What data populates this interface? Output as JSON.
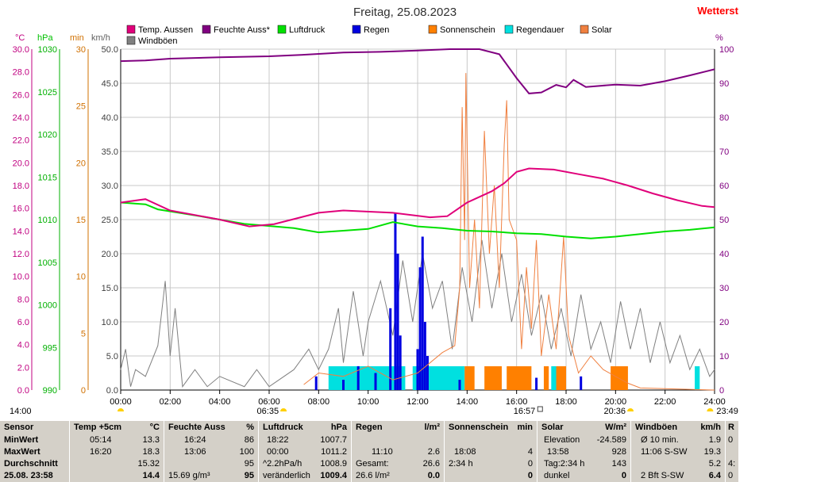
{
  "title": "Freitag, 25.08.2023",
  "brand": "Wetterst",
  "legend": [
    {
      "label": "Temp. Aussen",
      "color": "#e0007a"
    },
    {
      "label": "Feuchte Auss*",
      "color": "#800080"
    },
    {
      "label": "Luftdruck",
      "color": "#00e000"
    },
    {
      "label": "Regen",
      "color": "#0000e0"
    },
    {
      "label": "Sonnenschein",
      "color": "#ff8000"
    },
    {
      "label": "Regendauer",
      "color": "#00e0e0"
    },
    {
      "label": "Solar",
      "color": "#f08040"
    },
    {
      "label": "Windböen",
      "color": "#808080"
    }
  ],
  "axis_units": {
    "temp": "°C",
    "press": "hPa",
    "min": "min",
    "wind": "km/h",
    "hum": "%"
  },
  "chart_data": {
    "type": "line",
    "x_ticks": [
      "00:00",
      "02:00",
      "04:00",
      "06:00",
      "08:00",
      "10:00",
      "12:00",
      "14:00",
      "16:00",
      "18:00",
      "20:00",
      "22:00",
      "24:00"
    ],
    "axes": {
      "temp": {
        "min": 0.0,
        "max": 30.0,
        "ticks": [
          "30.0",
          "28.0",
          "26.0",
          "24.0",
          "22.0",
          "20.0",
          "18.0",
          "16.0",
          "14.0",
          "12.0",
          "10.0",
          "8.0",
          "6.0",
          "4.0",
          "2.0",
          "0.0"
        ]
      },
      "press": {
        "min": 990,
        "max": 1030,
        "ticks": [
          "1030",
          "1025",
          "1020",
          "1015",
          "1010",
          "1005",
          "1000",
          "995",
          "990"
        ]
      },
      "min": {
        "min": 0,
        "max": 30,
        "ticks": [
          "30",
          "25",
          "20",
          "15",
          "10",
          "5",
          "0"
        ]
      },
      "wind": {
        "min": 0,
        "max": 50,
        "ticks": [
          "50.0",
          "45.0",
          "40.0",
          "35.0",
          "30.0",
          "25.0",
          "20.0",
          "15.0",
          "10.0",
          "5.0",
          "0.0"
        ]
      },
      "hum": {
        "min": 0,
        "max": 100,
        "ticks": [
          "100",
          "90",
          "80",
          "70",
          "60",
          "50",
          "40",
          "30",
          "20",
          "10",
          "0"
        ]
      }
    },
    "series": [
      {
        "name": "Temp. Aussen",
        "axis": "temp",
        "color": "#e0007a",
        "points": [
          [
            0,
            16.5
          ],
          [
            1.0,
            16.8
          ],
          [
            2.0,
            15.8
          ],
          [
            4.0,
            15.0
          ],
          [
            5.2,
            14.4
          ],
          [
            6.2,
            14.6
          ],
          [
            8.0,
            15.6
          ],
          [
            9.0,
            15.8
          ],
          [
            11.0,
            15.6
          ],
          [
            12.5,
            15.2
          ],
          [
            13.2,
            15.3
          ],
          [
            14.0,
            16.5
          ],
          [
            15.0,
            17.5
          ],
          [
            15.5,
            18.2
          ],
          [
            16.0,
            19.2
          ],
          [
            16.5,
            19.5
          ],
          [
            17.5,
            19.4
          ],
          [
            18.5,
            19.0
          ],
          [
            19.5,
            18.6
          ],
          [
            20.5,
            18.0
          ],
          [
            21.5,
            17.3
          ],
          [
            22.5,
            16.7
          ],
          [
            23.5,
            16.2
          ],
          [
            24.0,
            16.1
          ]
        ]
      },
      {
        "name": "Feuchte Auss*",
        "axis": "hum",
        "color": "#800080",
        "points": [
          [
            0,
            96.5
          ],
          [
            1.0,
            96.7
          ],
          [
            2.0,
            97.2
          ],
          [
            4.0,
            97.6
          ],
          [
            6.0,
            97.9
          ],
          [
            7.5,
            98.4
          ],
          [
            9.0,
            99.0
          ],
          [
            10.5,
            99.2
          ],
          [
            12.0,
            99.6
          ],
          [
            13.3,
            100
          ],
          [
            14.5,
            100
          ],
          [
            15.3,
            98.5
          ],
          [
            16.0,
            91.5
          ],
          [
            16.5,
            87.0
          ],
          [
            17.0,
            87.3
          ],
          [
            17.6,
            89.5
          ],
          [
            18.0,
            88.8
          ],
          [
            18.3,
            91.0
          ],
          [
            18.8,
            88.9
          ],
          [
            20.0,
            89.6
          ],
          [
            21.0,
            89.3
          ],
          [
            22.0,
            90.6
          ],
          [
            23.0,
            92.3
          ],
          [
            24.0,
            94.1
          ]
        ]
      },
      {
        "name": "Luftdruck",
        "axis": "press",
        "color": "#00e000",
        "points": [
          [
            0,
            1012.0
          ],
          [
            1.0,
            1011.8
          ],
          [
            1.5,
            1011.2
          ],
          [
            3.0,
            1010.5
          ],
          [
            5.0,
            1009.5
          ],
          [
            7.0,
            1009.0
          ],
          [
            8.0,
            1008.5
          ],
          [
            9.0,
            1008.7
          ],
          [
            10.0,
            1008.9
          ],
          [
            11.0,
            1009.7
          ],
          [
            12.0,
            1009.2
          ],
          [
            13.0,
            1009.0
          ],
          [
            14.0,
            1008.7
          ],
          [
            15.0,
            1008.6
          ],
          [
            16.0,
            1008.4
          ],
          [
            17.0,
            1008.3
          ],
          [
            18.0,
            1008.0
          ],
          [
            19.0,
            1007.8
          ],
          [
            20.0,
            1008.0
          ],
          [
            21.0,
            1008.3
          ],
          [
            22.0,
            1008.6
          ],
          [
            23.0,
            1008.8
          ],
          [
            24.0,
            1009.1
          ]
        ]
      },
      {
        "name": "Regen",
        "axis": "wind",
        "color": "#0000e0",
        "kind": "bars",
        "points": [
          [
            7.9,
            2.0
          ],
          [
            9.0,
            1.5
          ],
          [
            9.6,
            3.5
          ],
          [
            10.3,
            2.5
          ],
          [
            10.9,
            12.0
          ],
          [
            11.1,
            26.0
          ],
          [
            11.2,
            20.0
          ],
          [
            11.3,
            8.0
          ],
          [
            12.0,
            6.0
          ],
          [
            12.1,
            18.0
          ],
          [
            12.2,
            22.5
          ],
          [
            12.3,
            10.0
          ],
          [
            12.4,
            5.0
          ],
          [
            13.7,
            1.5
          ],
          [
            16.8,
            1.8
          ],
          [
            18.6,
            2.0
          ]
        ]
      },
      {
        "name": "Sonnenschein",
        "axis": "min",
        "color": "#ff8000",
        "kind": "bars",
        "ranges": [
          [
            13.9,
            14.3
          ],
          [
            14.7,
            15.4
          ],
          [
            15.6,
            16.6
          ],
          [
            17.1,
            17.3
          ],
          [
            17.6,
            18.0
          ],
          [
            19.8,
            20.5
          ]
        ]
      },
      {
        "name": "Regendauer",
        "axis": "wind",
        "color": "#00e0e0",
        "kind": "bars",
        "ranges": [
          [
            8.4,
            11.5
          ],
          [
            11.8,
            13.9
          ],
          [
            17.4,
            17.9
          ],
          [
            23.2,
            23.4
          ]
        ]
      },
      {
        "name": "Solar",
        "axis": "wind",
        "color": "#f08040",
        "points": [
          [
            7.4,
            0.8
          ],
          [
            8.0,
            2.5
          ],
          [
            9.0,
            2.0
          ],
          [
            10.0,
            3.5
          ],
          [
            11.0,
            1.5
          ],
          [
            12.0,
            2.5
          ],
          [
            13.0,
            5.5
          ],
          [
            13.5,
            6.5
          ],
          [
            13.7,
            15.0
          ],
          [
            13.8,
            41.5
          ],
          [
            13.9,
            22.0
          ],
          [
            13.95,
            46.5
          ],
          [
            14.1,
            15.0
          ],
          [
            14.3,
            25.0
          ],
          [
            14.5,
            12.0
          ],
          [
            14.7,
            38.0
          ],
          [
            14.9,
            20.0
          ],
          [
            15.1,
            30.0
          ],
          [
            15.3,
            15.0
          ],
          [
            15.5,
            36.0
          ],
          [
            15.6,
            42.5
          ],
          [
            15.7,
            25.0
          ],
          [
            16.0,
            22.0
          ],
          [
            16.2,
            6.0
          ],
          [
            16.4,
            18.0
          ],
          [
            16.6,
            9.0
          ],
          [
            16.8,
            22.0
          ],
          [
            17.0,
            5.0
          ],
          [
            17.3,
            14.0
          ],
          [
            17.6,
            6.0
          ],
          [
            17.9,
            22.5
          ],
          [
            18.1,
            8.0
          ],
          [
            18.5,
            2.5
          ],
          [
            19.0,
            5.0
          ],
          [
            19.5,
            3.0
          ],
          [
            20.0,
            2.0
          ],
          [
            20.5,
            1.0
          ],
          [
            21.0,
            0.3
          ],
          [
            24.0,
            0.0
          ]
        ]
      },
      {
        "name": "Windböen",
        "axis": "wind",
        "color": "#808080",
        "points": [
          [
            0,
            3.0
          ],
          [
            0.2,
            6.0
          ],
          [
            0.4,
            0.5
          ],
          [
            0.6,
            3.0
          ],
          [
            1.0,
            2.0
          ],
          [
            1.5,
            6.5
          ],
          [
            1.8,
            16.0
          ],
          [
            2.0,
            5.0
          ],
          [
            2.2,
            12.0
          ],
          [
            2.5,
            0.5
          ],
          [
            3.0,
            3.0
          ],
          [
            3.5,
            0.5
          ],
          [
            4.0,
            2.0
          ],
          [
            5.0,
            0.5
          ],
          [
            5.5,
            3.0
          ],
          [
            6.0,
            0.5
          ],
          [
            7.0,
            3.0
          ],
          [
            7.6,
            6.0
          ],
          [
            8.0,
            3.0
          ],
          [
            8.4,
            6.0
          ],
          [
            8.8,
            12.0
          ],
          [
            9.0,
            4.0
          ],
          [
            9.4,
            14.5
          ],
          [
            9.8,
            5.0
          ],
          [
            10.0,
            10.0
          ],
          [
            10.5,
            16.0
          ],
          [
            11.0,
            8.0
          ],
          [
            11.4,
            19.0
          ],
          [
            11.8,
            10.0
          ],
          [
            12.2,
            20.0
          ],
          [
            12.6,
            12.0
          ],
          [
            13.0,
            16.0
          ],
          [
            13.4,
            6.0
          ],
          [
            13.8,
            18.0
          ],
          [
            14.2,
            10.0
          ],
          [
            14.6,
            22.0
          ],
          [
            15.0,
            12.0
          ],
          [
            15.4,
            20.0
          ],
          [
            15.8,
            10.0
          ],
          [
            16.2,
            17.0
          ],
          [
            16.6,
            8.0
          ],
          [
            17.0,
            14.0
          ],
          [
            17.4,
            6.0
          ],
          [
            17.8,
            12.0
          ],
          [
            18.2,
            5.0
          ],
          [
            18.6,
            14.0
          ],
          [
            19.0,
            6.0
          ],
          [
            19.4,
            10.0
          ],
          [
            19.8,
            4.0
          ],
          [
            20.2,
            13.0
          ],
          [
            20.6,
            6.0
          ],
          [
            21.0,
            12.0
          ],
          [
            21.4,
            4.0
          ],
          [
            21.8,
            10.0
          ],
          [
            22.2,
            4.0
          ],
          [
            22.6,
            8.0
          ],
          [
            23.0,
            3.0
          ],
          [
            23.4,
            6.0
          ],
          [
            23.8,
            2.0
          ],
          [
            24.0,
            3.0
          ]
        ]
      }
    ]
  },
  "events_bottom": [
    {
      "t": 0.0,
      "label": "14:00",
      "marker": "yellow"
    },
    {
      "t": 6.58,
      "label": "06:35",
      "marker": "yellow"
    },
    {
      "t": 16.95,
      "label": "16:57",
      "marker": "icon"
    },
    {
      "t": 20.6,
      "label": "20:36",
      "marker": "yellow"
    },
    {
      "t": 23.82,
      "label": "23:49",
      "marker": "yellow"
    }
  ],
  "table": {
    "sensor": {
      "header": "Sensor",
      "rows": [
        "MinWert",
        "MaxWert",
        "Durchschnitt",
        "25.08. 23:58"
      ]
    },
    "temp": {
      "header_l": "Temp +5cm",
      "header_r": "°C",
      "rows": [
        [
          "05:14",
          "13.3"
        ],
        [
          "16:20",
          "18.3"
        ],
        [
          "",
          "15.32"
        ],
        [
          "",
          "14.4"
        ]
      ]
    },
    "feuchte": {
      "header_l": "Feuchte Auss",
      "header_r": "%",
      "rows": [
        [
          "16:24",
          "86"
        ],
        [
          "13:06",
          "100"
        ],
        [
          "",
          "95"
        ],
        [
          "15.69 g/m³",
          "95"
        ]
      ]
    },
    "luftdruck": {
      "header_l": "Luftdruck",
      "header_r": "hPa",
      "rows": [
        [
          "18:22",
          "1007.7"
        ],
        [
          "00:00",
          "1011.2"
        ],
        [
          "^2.2hPa/h",
          "1008.9"
        ],
        [
          "veränderlich",
          "1009.4"
        ]
      ]
    },
    "regen": {
      "header_l": "Regen",
      "header_r": "l/m²",
      "rows": [
        [
          "",
          ""
        ],
        [
          "11:10",
          "2.6"
        ],
        [
          "Gesamt:",
          "26.6"
        ],
        [
          "26.6 l/m²",
          "0.0"
        ]
      ]
    },
    "sonne": {
      "header_l": "Sonnenschein",
      "header_r": "min",
      "rows": [
        [
          "",
          ""
        ],
        [
          "18:08",
          "4"
        ],
        [
          "2:34 h",
          "0"
        ],
        [
          "",
          "0"
        ]
      ]
    },
    "solar": {
      "header_l": "Solar",
      "header_r": "W/m²",
      "rows": [
        [
          "Elevation",
          "-24.589"
        ],
        [
          "13:58",
          "928"
        ],
        [
          "Tag:2:34 h",
          "143"
        ],
        [
          "dunkel",
          "0"
        ]
      ]
    },
    "wind": {
      "header_l": "Windböen",
      "header_r": "km/h",
      "rows": [
        [
          "Ø 10 min.",
          "1.9"
        ],
        [
          "11:06  S-SW",
          "19.3"
        ],
        [
          "",
          "5.2"
        ],
        [
          "2 Bft S-SW",
          "6.4"
        ]
      ]
    },
    "extra": {
      "header": "R",
      "rows": [
        "0",
        "",
        "4:",
        "0"
      ]
    }
  }
}
